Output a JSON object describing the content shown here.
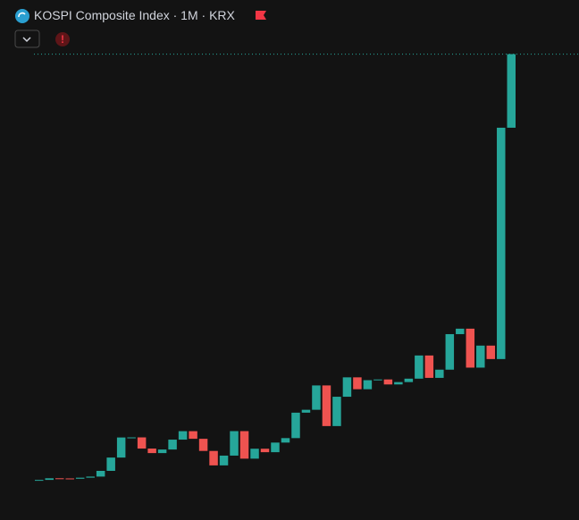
{
  "header": {
    "title": "KOSPI Composite Index · 1M · KRX"
  },
  "chart_data": {
    "type": "candlestick",
    "open": [
      100,
      100,
      131,
      128,
      122,
      142,
      163,
      272,
      525,
      907,
      909,
      696,
      610,
      678,
      866,
      1027,
      882,
      651,
      376,
      562,
      1028,
      504,
      693,
      627,
      810,
      895,
      1379,
      1434,
      1897,
      1124,
      1682,
      2051,
      1825,
      1997,
      2011,
      1916,
      1961,
      2026,
      2467,
      2041,
      2197,
      2873,
      2977,
      2236,
      2655,
      2399,
      6800
    ],
    "close": [
      100,
      131,
      128,
      122,
      142,
      163,
      272,
      525,
      907,
      909,
      696,
      610,
      678,
      866,
      1027,
      882,
      651,
      376,
      562,
      1028,
      504,
      693,
      627,
      810,
      895,
      1379,
      1434,
      1897,
      1124,
      1682,
      2051,
      1825,
      1997,
      2011,
      1916,
      1961,
      2026,
      2467,
      2041,
      2197,
      2873,
      2977,
      2236,
      2655,
      2399,
      6800,
      8200
    ],
    "up_color": "#26a69a",
    "down_color": "#ef5350",
    "ylim": [
      0,
      8210
    ]
  }
}
